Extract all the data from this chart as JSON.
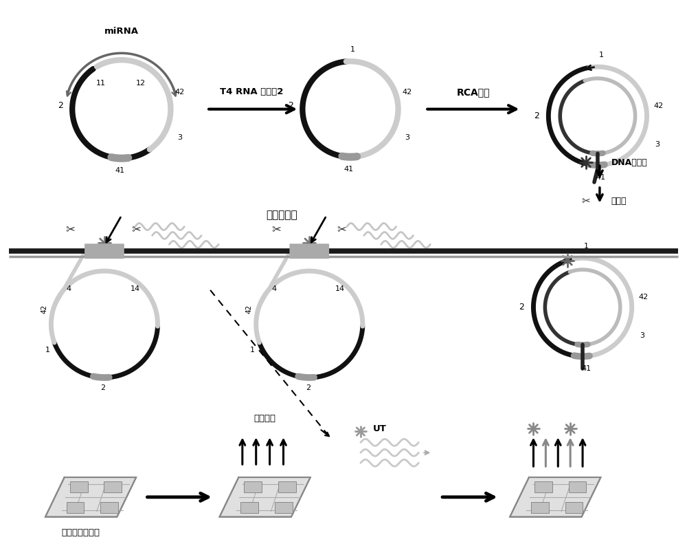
{
  "bg_color": "#ffffff",
  "texts": {
    "miRNA": "miRNA",
    "T4_RNA": "T4 RNA 连接醂2",
    "RCA": "RCA引物",
    "DNA_pol": "DNA聚合醂",
    "nicking": "切刈醂",
    "specific_seq": "特异性序列",
    "capture_probe": "捕获探针",
    "coded_chip": "编码悬浮微芯片",
    "UT": "UT"
  }
}
